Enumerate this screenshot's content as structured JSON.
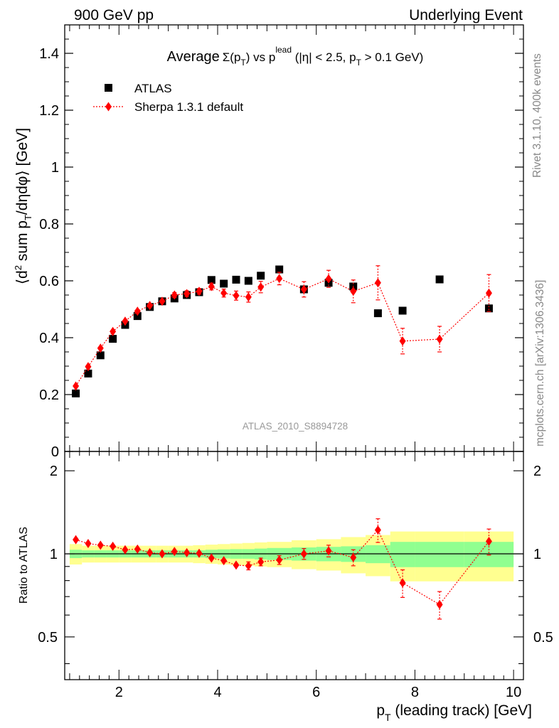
{
  "header": {
    "left": "900 GeV pp",
    "right": "Underlying Event"
  },
  "side": {
    "rivet": "Rivet 3.1.10,  400k events",
    "mcplots": "mcplots.cern.ch [arXiv:1306.3436]"
  },
  "chart_data": [
    {
      "type": "scatter",
      "title_prefix": "Average",
      "title_sigma": "Σ(p",
      "title_sub": "T",
      "title_mid": ") vs p",
      "title_sup": "lead",
      "title_rest": " (|η| < 2.5, p",
      "title_sub2": "T",
      "title_end": " > 0.1 GeV)",
      "ylabel": "⟨d² sum p_T/dηdφ⟩ [GeV]",
      "analysis_id": "ATLAS_2010_S8894728",
      "xlim": [
        0.9,
        10.2
      ],
      "ylim": [
        0,
        1.5
      ],
      "y_ticks": [
        0,
        0.2,
        0.4,
        0.6,
        0.8,
        1,
        1.2,
        1.4
      ],
      "y_tick_labels": [
        "0",
        "0.2",
        "0.4",
        "0.6",
        "0.8",
        "1",
        "1.2",
        "1.4"
      ],
      "legend": {
        "position": "top-left",
        "atlas": "ATLAS",
        "sherpa": "Sherpa 1.3.1 default"
      },
      "series": [
        {
          "name": "ATLAS",
          "marker": "square",
          "color": "#000000",
          "x": [
            1.125,
            1.375,
            1.625,
            1.875,
            2.125,
            2.375,
            2.625,
            2.875,
            3.125,
            3.375,
            3.625,
            3.875,
            4.125,
            4.375,
            4.625,
            4.875,
            5.25,
            5.75,
            6.25,
            6.75,
            7.25,
            7.75,
            8.5,
            9.5
          ],
          "y": [
            0.204,
            0.274,
            0.338,
            0.396,
            0.445,
            0.476,
            0.508,
            0.528,
            0.538,
            0.55,
            0.56,
            0.603,
            0.59,
            0.604,
            0.6,
            0.618,
            0.64,
            0.57,
            0.593,
            0.58,
            0.486,
            0.495,
            0.605,
            0.503
          ]
        },
        {
          "name": "Sherpa 1.3.1 default",
          "marker": "diamond",
          "color": "#ff0000",
          "x": [
            1.125,
            1.375,
            1.625,
            1.875,
            2.125,
            2.375,
            2.625,
            2.875,
            3.125,
            3.375,
            3.625,
            3.875,
            4.125,
            4.375,
            4.625,
            4.875,
            5.25,
            5.75,
            6.25,
            6.75,
            7.25,
            7.75,
            8.5,
            9.5
          ],
          "y": [
            0.23,
            0.298,
            0.363,
            0.422,
            0.458,
            0.493,
            0.513,
            0.528,
            0.55,
            0.555,
            0.563,
            0.58,
            0.557,
            0.548,
            0.543,
            0.578,
            0.608,
            0.57,
            0.607,
            0.563,
            0.593,
            0.388,
            0.395,
            0.557
          ],
          "yerr": [
            0.006,
            0.006,
            0.006,
            0.006,
            0.007,
            0.007,
            0.008,
            0.008,
            0.009,
            0.01,
            0.01,
            0.012,
            0.014,
            0.016,
            0.018,
            0.02,
            0.022,
            0.027,
            0.03,
            0.04,
            0.06,
            0.045,
            0.045,
            0.065
          ]
        }
      ]
    },
    {
      "type": "scatter",
      "ylabel": "Ratio to ATLAS",
      "xlabel": "p_T (leading track) [GeV]",
      "xlim": [
        0.9,
        10.2
      ],
      "ylim": [
        0.35,
        2.35
      ],
      "x_ticks": [
        2,
        4,
        6,
        8,
        10
      ],
      "x_tick_labels": [
        "2",
        "4",
        "6",
        "8",
        "10"
      ],
      "y_ticks": [
        0.5,
        1,
        2
      ],
      "y_tick_labels": [
        "0.5",
        "1",
        "2"
      ],
      "bands": {
        "green": {
          "color": "#90ff90",
          "edges": [
            1.0,
            1.25,
            1.5,
            1.75,
            2.0,
            2.25,
            2.5,
            2.75,
            3.0,
            3.25,
            3.5,
            3.75,
            4.0,
            4.25,
            4.5,
            4.75,
            5.0,
            5.5,
            6.0,
            6.5,
            7.0,
            7.5,
            8.0,
            9.0,
            10.0
          ],
          "half_width": [
            0.035,
            0.03,
            0.03,
            0.03,
            0.03,
            0.03,
            0.03,
            0.03,
            0.03,
            0.03,
            0.03,
            0.035,
            0.038,
            0.04,
            0.04,
            0.045,
            0.05,
            0.055,
            0.06,
            0.065,
            0.075,
            0.105,
            0.105,
            0.105
          ]
        },
        "yellow": {
          "color": "#ffff90",
          "edges": [
            1.0,
            1.25,
            1.5,
            1.75,
            2.0,
            2.25,
            2.5,
            2.75,
            3.0,
            3.25,
            3.5,
            3.75,
            4.0,
            4.25,
            4.5,
            4.75,
            5.0,
            5.5,
            6.0,
            6.5,
            7.0,
            7.5,
            8.0,
            9.0,
            10.0
          ],
          "half_width": [
            0.085,
            0.07,
            0.07,
            0.07,
            0.07,
            0.07,
            0.07,
            0.07,
            0.07,
            0.07,
            0.075,
            0.08,
            0.085,
            0.09,
            0.095,
            0.1,
            0.105,
            0.12,
            0.13,
            0.15,
            0.17,
            0.205,
            0.205,
            0.205
          ]
        }
      },
      "series": [
        {
          "name": "Sherpa 1.3.1 default",
          "color": "#ff0000",
          "x": [
            1.125,
            1.375,
            1.625,
            1.875,
            2.125,
            2.375,
            2.625,
            2.875,
            3.125,
            3.375,
            3.625,
            3.875,
            4.125,
            4.375,
            4.625,
            4.875,
            5.25,
            5.75,
            6.25,
            6.75,
            7.25,
            7.75,
            8.5,
            9.5
          ],
          "y": [
            1.125,
            1.09,
            1.075,
            1.065,
            1.035,
            1.04,
            1.01,
            1.0,
            1.02,
            1.01,
            1.005,
            0.965,
            0.945,
            0.91,
            0.905,
            0.935,
            0.95,
            1.0,
            1.025,
            0.97,
            1.22,
            0.785,
            0.655,
            1.11
          ],
          "yerr": [
            0.015,
            0.015,
            0.015,
            0.015,
            0.015,
            0.015,
            0.015,
            0.015,
            0.015,
            0.015,
            0.015,
            0.02,
            0.02,
            0.025,
            0.03,
            0.03,
            0.035,
            0.045,
            0.05,
            0.065,
            0.12,
            0.09,
            0.075,
            0.12
          ]
        }
      ]
    }
  ]
}
